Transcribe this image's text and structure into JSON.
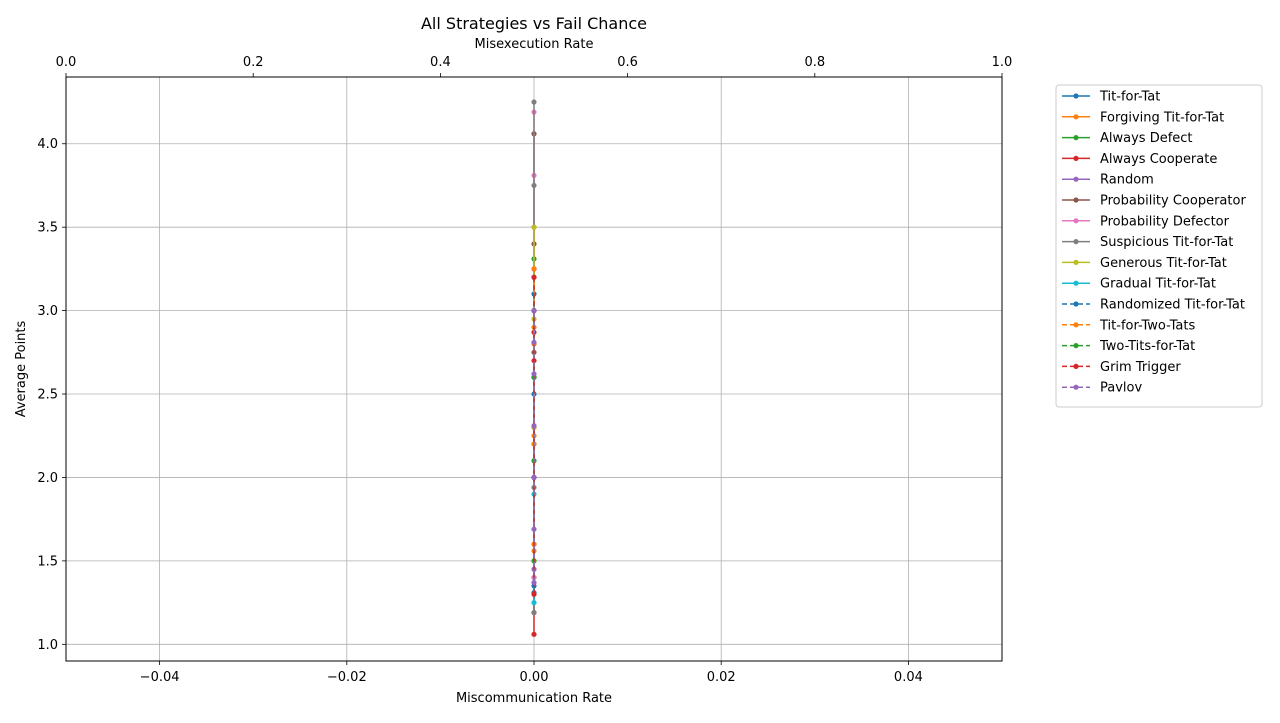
{
  "chart_data": {
    "type": "line",
    "title": "All Strategies vs Fail Chance",
    "xlabel": "Miscommunication Rate",
    "ylabel": "Average Points",
    "x2label": "Misexecution Rate",
    "xlim": [
      -0.05,
      0.05
    ],
    "ylim": [
      0.9,
      4.4
    ],
    "x2lim": [
      0.0,
      1.0
    ],
    "xticks": [
      "−0.04",
      "−0.02",
      "0.00",
      "0.02",
      "0.04"
    ],
    "xtick_values": [
      -0.04,
      -0.02,
      0.0,
      0.02,
      0.04
    ],
    "yticks": [
      "1.0",
      "1.5",
      "2.0",
      "2.5",
      "3.0",
      "3.5",
      "4.0"
    ],
    "ytick_values": [
      1.0,
      1.5,
      2.0,
      2.5,
      3.0,
      3.5,
      4.0
    ],
    "x2ticks": [
      "0.0",
      "0.2",
      "0.4",
      "0.6",
      "0.8",
      "1.0"
    ],
    "x2tick_values": [
      0.0,
      0.2,
      0.4,
      0.6,
      0.8,
      1.0
    ],
    "grid": true,
    "legend_position": "outside-right",
    "series": [
      {
        "name": "Tit-for-Tat",
        "color": "#1f77b4",
        "dashed": false,
        "x": [
          0,
          0,
          0,
          0,
          0
        ],
        "y": [
          1.31,
          2.0,
          2.5,
          3.0,
          3.5
        ]
      },
      {
        "name": "Forgiving Tit-for-Tat",
        "color": "#ff7f0e",
        "dashed": false,
        "x": [
          0,
          0,
          0,
          0
        ],
        "y": [
          1.56,
          2.25,
          2.9,
          3.5
        ]
      },
      {
        "name": "Always Defect",
        "color": "#2ca02c",
        "dashed": false,
        "x": [
          0,
          0,
          0,
          0
        ],
        "y": [
          1.4,
          2.2,
          2.8,
          3.31
        ]
      },
      {
        "name": "Always Cooperate",
        "color": "#d62728",
        "dashed": false,
        "x": [
          0,
          0,
          0,
          0,
          0
        ],
        "y": [
          1.06,
          1.6,
          2.3,
          2.87,
          3.25
        ]
      },
      {
        "name": "Random",
        "color": "#9467bd",
        "dashed": false,
        "x": [
          0,
          0,
          0,
          0
        ],
        "y": [
          1.45,
          2.0,
          2.6,
          3.0
        ]
      },
      {
        "name": "Probability Cooperator",
        "color": "#8c564b",
        "dashed": false,
        "x": [
          0,
          0,
          0,
          0,
          0
        ],
        "y": [
          1.19,
          2.0,
          2.75,
          3.4,
          4.06
        ]
      },
      {
        "name": "Probability Defector",
        "color": "#e377c2",
        "dashed": false,
        "x": [
          0,
          0,
          0,
          0,
          0
        ],
        "y": [
          1.4,
          2.3,
          3.0,
          3.81,
          4.19
        ]
      },
      {
        "name": "Suspicious Tit-for-Tat",
        "color": "#7f7f7f",
        "dashed": false,
        "x": [
          0,
          0,
          0,
          0,
          0,
          0
        ],
        "y": [
          1.19,
          1.94,
          2.6,
          3.2,
          3.75,
          4.25
        ]
      },
      {
        "name": "Generous Tit-for-Tat",
        "color": "#bcbd22",
        "dashed": false,
        "x": [
          0,
          0,
          0,
          0
        ],
        "y": [
          1.5,
          2.3,
          2.95,
          3.5
        ]
      },
      {
        "name": "Gradual Tit-for-Tat",
        "color": "#17becf",
        "dashed": false,
        "x": [
          0,
          0,
          0,
          0
        ],
        "y": [
          1.25,
          1.9,
          2.6,
          3.1
        ]
      },
      {
        "name": "Randomized Tit-for-Tat",
        "color": "#1f77b4",
        "dashed": true,
        "x": [
          0,
          0,
          0,
          0
        ],
        "y": [
          1.35,
          2.0,
          2.6,
          3.1
        ]
      },
      {
        "name": "Tit-for-Two-Tats",
        "color": "#ff7f0e",
        "dashed": true,
        "x": [
          0,
          0,
          0,
          0
        ],
        "y": [
          1.6,
          2.2,
          2.8,
          3.25
        ]
      },
      {
        "name": "Two-Tits-for-Tat",
        "color": "#2ca02c",
        "dashed": true,
        "x": [
          0,
          0,
          0,
          0
        ],
        "y": [
          1.5,
          2.1,
          2.6,
          3.0
        ]
      },
      {
        "name": "Grim Trigger",
        "color": "#d62728",
        "dashed": true,
        "x": [
          0,
          0,
          0,
          0
        ],
        "y": [
          1.3,
          2.0,
          2.7,
          3.2
        ]
      },
      {
        "name": "Pavlov",
        "color": "#9467bd",
        "dashed": true,
        "x": [
          0,
          0,
          0,
          0,
          0,
          0,
          0
        ],
        "y": [
          1.37,
          1.69,
          2.0,
          2.31,
          2.62,
          2.81,
          3.0
        ]
      }
    ]
  }
}
